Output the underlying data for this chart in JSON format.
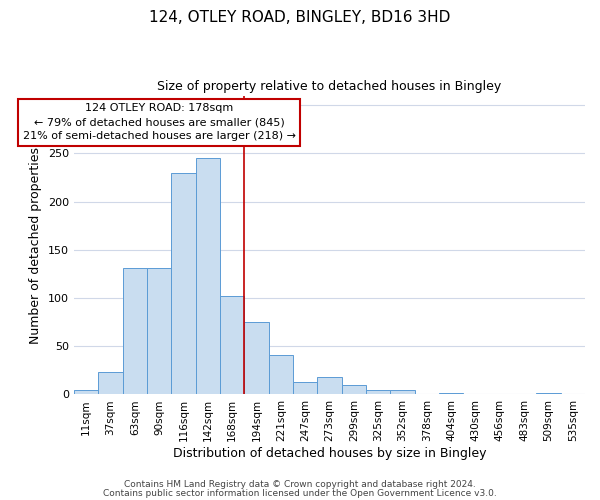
{
  "title1": "124, OTLEY ROAD, BINGLEY, BD16 3HD",
  "title2": "Size of property relative to detached houses in Bingley",
  "xlabel": "Distribution of detached houses by size in Bingley",
  "ylabel": "Number of detached properties",
  "bar_labels": [
    "11sqm",
    "37sqm",
    "63sqm",
    "90sqm",
    "116sqm",
    "142sqm",
    "168sqm",
    "194sqm",
    "221sqm",
    "247sqm",
    "273sqm",
    "299sqm",
    "325sqm",
    "352sqm",
    "378sqm",
    "404sqm",
    "430sqm",
    "456sqm",
    "483sqm",
    "509sqm",
    "535sqm"
  ],
  "bar_values": [
    5,
    23,
    131,
    131,
    230,
    245,
    102,
    75,
    41,
    13,
    18,
    10,
    5,
    5,
    0,
    2,
    0,
    0,
    0,
    2,
    0
  ],
  "bar_color": "#c9ddf0",
  "bar_edge_color": "#5b9bd5",
  "annotation_text_line1": "124 OTLEY ROAD: 178sqm",
  "annotation_text_line2": "← 79% of detached houses are smaller (845)",
  "annotation_text_line3": "21% of semi-detached houses are larger (218) →",
  "annotation_box_color": "#ffffff",
  "annotation_box_edge_color": "#c00000",
  "vline_color": "#c00000",
  "vline_x_index": 6.5,
  "footer1": "Contains HM Land Registry data © Crown copyright and database right 2024.",
  "footer2": "Contains public sector information licensed under the Open Government Licence v3.0.",
  "ylim": [
    0,
    310
  ],
  "title1_fontsize": 11,
  "title2_fontsize": 9,
  "xlabel_fontsize": 9,
  "ylabel_fontsize": 9,
  "tick_fontsize": 7.5,
  "footer_fontsize": 6.5,
  "annot_fontsize": 8
}
